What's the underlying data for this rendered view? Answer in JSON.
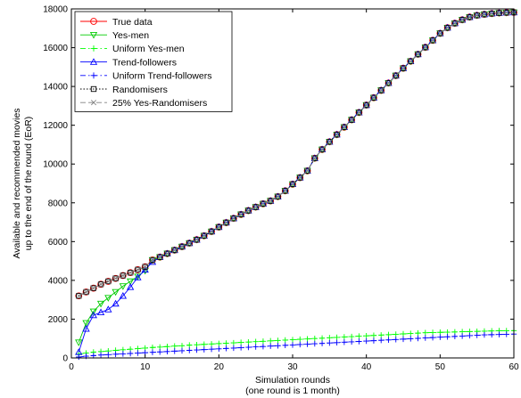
{
  "chart_data": {
    "type": "line",
    "title": "",
    "xlabel": [
      "Simulation rounds",
      "(one round is 1 month)"
    ],
    "ylabel": [
      "Available and recommended movies",
      "up to the end of the round (EoR)"
    ],
    "xlim": [
      0,
      60
    ],
    "ylim": [
      0,
      18000
    ],
    "xticks": [
      0,
      10,
      20,
      30,
      40,
      50,
      60
    ],
    "yticks": [
      0,
      2000,
      4000,
      6000,
      8000,
      10000,
      12000,
      14000,
      16000,
      18000
    ],
    "grid": false,
    "legend_position": "top-left",
    "x": [
      1,
      2,
      3,
      4,
      5,
      6,
      7,
      8,
      9,
      10,
      11,
      12,
      13,
      14,
      15,
      16,
      17,
      18,
      19,
      20,
      21,
      22,
      23,
      24,
      25,
      26,
      27,
      28,
      29,
      30,
      31,
      32,
      33,
      34,
      35,
      36,
      37,
      38,
      39,
      40,
      41,
      42,
      43,
      44,
      45,
      46,
      47,
      48,
      49,
      50,
      51,
      52,
      53,
      54,
      55,
      56,
      57,
      58,
      59,
      60
    ],
    "series": [
      {
        "name": "True data",
        "color": "#ff0000",
        "dash": "",
        "marker": "circle",
        "values": [
          3200,
          3400,
          3600,
          3800,
          3950,
          4100,
          4250,
          4400,
          4550,
          4700,
          5050,
          5200,
          5380,
          5560,
          5740,
          5920,
          6100,
          6300,
          6520,
          6750,
          6980,
          7200,
          7400,
          7600,
          7780,
          7950,
          8100,
          8320,
          8620,
          8960,
          9300,
          9650,
          10300,
          10750,
          11150,
          11520,
          11900,
          12280,
          12660,
          13040,
          13420,
          13800,
          14180,
          14560,
          14940,
          15300,
          15660,
          16020,
          16380,
          16740,
          17030,
          17260,
          17440,
          17580,
          17670,
          17720,
          17760,
          17790,
          17810,
          17820
        ]
      },
      {
        "name": "Yes-men",
        "color": "#00cc00",
        "dash": "",
        "marker": "triangle-down",
        "values": [
          800,
          1800,
          2400,
          2800,
          3100,
          3400,
          3700,
          3950,
          4200,
          4500,
          5050,
          5200,
          5380,
          5560,
          5740,
          5920,
          6100,
          6300,
          6520,
          6750,
          6980,
          7200,
          7400,
          7600,
          7780,
          7950,
          8100,
          8320,
          8620,
          8960,
          9300,
          9650,
          10300,
          10750,
          11150,
          11520,
          11900,
          12280,
          12660,
          13040,
          13420,
          13800,
          14180,
          14560,
          14940,
          15300,
          15660,
          16020,
          16380,
          16740,
          17030,
          17260,
          17440,
          17580,
          17670,
          17720,
          17760,
          17790,
          17810,
          17820
        ]
      },
      {
        "name": "Uniform Yes-men",
        "color": "#00ff00",
        "dash": "6,3,1.5,3",
        "marker": "plus",
        "values": [
          200,
          250,
          300,
          330,
          360,
          390,
          420,
          450,
          480,
          510,
          540,
          560,
          585,
          610,
          630,
          660,
          680,
          700,
          720,
          740,
          760,
          780,
          800,
          820,
          840,
          860,
          880,
          900,
          920,
          940,
          960,
          980,
          1000,
          1020,
          1040,
          1060,
          1080,
          1100,
          1120,
          1140,
          1160,
          1180,
          1200,
          1220,
          1240,
          1260,
          1280,
          1300,
          1310,
          1320,
          1330,
          1340,
          1350,
          1360,
          1370,
          1380,
          1390,
          1400,
          1405,
          1410
        ]
      },
      {
        "name": "Trend-followers",
        "color": "#0000ff",
        "dash": "",
        "marker": "triangle-up",
        "values": [
          300,
          1500,
          2200,
          2350,
          2500,
          2800,
          3200,
          3650,
          4150,
          4550,
          4950,
          5200,
          5380,
          5560,
          5740,
          5920,
          6100,
          6300,
          6520,
          6750,
          6980,
          7200,
          7400,
          7600,
          7780,
          7950,
          8100,
          8320,
          8620,
          8960,
          9300,
          9650,
          10300,
          10750,
          11150,
          11520,
          11900,
          12280,
          12660,
          13040,
          13420,
          13800,
          14180,
          14560,
          14940,
          15300,
          15660,
          16020,
          16380,
          16740,
          17030,
          17260,
          17440,
          17580,
          17670,
          17720,
          17760,
          17790,
          17810,
          17820
        ]
      },
      {
        "name": "Uniform Trend-followers",
        "color": "#0000ff",
        "dash": "6,3,1.5,3",
        "marker": "plus",
        "values": [
          50,
          90,
          120,
          150,
          170,
          190,
          210,
          230,
          250,
          270,
          290,
          310,
          330,
          350,
          370,
          390,
          410,
          430,
          450,
          470,
          490,
          510,
          530,
          550,
          570,
          590,
          610,
          630,
          650,
          670,
          690,
          710,
          730,
          750,
          770,
          790,
          810,
          830,
          850,
          870,
          890,
          910,
          930,
          950,
          970,
          990,
          1010,
          1030,
          1050,
          1070,
          1090,
          1110,
          1130,
          1150,
          1170,
          1190,
          1200,
          1210,
          1220,
          1230
        ]
      },
      {
        "name": "Randomisers",
        "color": "#000000",
        "dash": "1.5,2",
        "marker": "square",
        "values": [
          3200,
          3400,
          3600,
          3800,
          3950,
          4100,
          4250,
          4400,
          4550,
          4700,
          5050,
          5200,
          5380,
          5560,
          5740,
          5920,
          6100,
          6300,
          6520,
          6750,
          6980,
          7200,
          7400,
          7600,
          7780,
          7950,
          8100,
          8320,
          8620,
          8960,
          9300,
          9650,
          10300,
          10750,
          11150,
          11520,
          11900,
          12280,
          12660,
          13040,
          13420,
          13800,
          14180,
          14560,
          14940,
          15300,
          15660,
          16020,
          16380,
          16740,
          17030,
          17260,
          17440,
          17580,
          17670,
          17720,
          17760,
          17790,
          17810,
          17820
        ]
      },
      {
        "name": "25% Yes-Randomisers",
        "color": "#808080",
        "dash": "6,3",
        "marker": "x",
        "values": [
          3200,
          3400,
          3600,
          3800,
          3950,
          4100,
          4250,
          4400,
          4550,
          4700,
          5050,
          5200,
          5380,
          5560,
          5740,
          5920,
          6100,
          6300,
          6520,
          6750,
          6980,
          7200,
          7400,
          7600,
          7780,
          7950,
          8100,
          8320,
          8620,
          8960,
          9300,
          9650,
          10300,
          10750,
          11150,
          11520,
          11900,
          12280,
          12660,
          13040,
          13420,
          13800,
          14180,
          14560,
          14940,
          15300,
          15660,
          16020,
          16380,
          16740,
          17030,
          17260,
          17440,
          17580,
          17670,
          17720,
          17760,
          17790,
          17810,
          17820
        ]
      }
    ]
  }
}
